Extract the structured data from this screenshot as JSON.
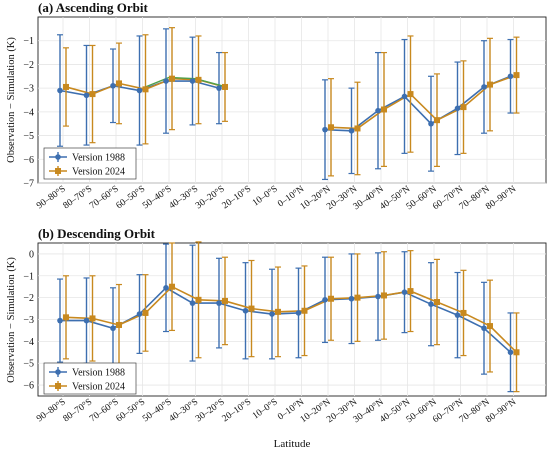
{
  "figure": {
    "xlabel": "Latitude",
    "ylabel": "Observation − Simulation (K)"
  },
  "colors": {
    "version_1988": "#3d6fb0",
    "version_2024": "#c8891f",
    "segment_green": "#4fa04a",
    "grid": "#e6e6e6",
    "frame": "#222222"
  },
  "chart_data": [
    {
      "panel": "a",
      "type": "line",
      "title": "(a) Ascending Orbit",
      "ylabel": "Observation − Simulation (K)",
      "xlabel": "",
      "ylim": [
        -7,
        0
      ],
      "yticks": [
        -7,
        -6,
        -5,
        -4,
        -3,
        -2,
        -1
      ],
      "grid": true,
      "legend_placement": "bottom-left",
      "categories": [
        "90–80°S",
        "80–70°S",
        "70–60°S",
        "60–50°S",
        "50–40°S",
        "40–30°S",
        "30–20°S",
        "20–10°S",
        "10–0°S",
        "0–10°N",
        "10–20°N",
        "20–30°N",
        "30–40°N",
        "40–50°N",
        "50–60°N",
        "60–70°N",
        "70–80°N",
        "80–90°N"
      ],
      "series": [
        {
          "name": "Version 1988",
          "values": [
            -3.1,
            -3.3,
            -2.9,
            -3.1,
            -2.7,
            -2.7,
            -3.0,
            null,
            null,
            null,
            -4.75,
            -4.8,
            -3.95,
            -3.35,
            -4.5,
            -3.85,
            -2.95,
            -2.5
          ],
          "error": [
            2.35,
            2.1,
            1.55,
            2.3,
            2.2,
            1.85,
            1.5,
            null,
            null,
            null,
            2.1,
            1.8,
            2.45,
            2.4,
            2.0,
            1.95,
            1.95,
            1.55
          ]
        },
        {
          "name": "Version 2024",
          "values": [
            -2.95,
            -3.25,
            -2.8,
            -3.05,
            -2.6,
            -2.65,
            -2.95,
            null,
            null,
            null,
            -4.65,
            -4.7,
            -3.9,
            -3.25,
            -4.35,
            -3.8,
            -2.85,
            -2.45
          ],
          "error": [
            1.65,
            2.05,
            1.7,
            2.3,
            2.15,
            1.85,
            1.45,
            null,
            null,
            null,
            2.05,
            1.95,
            2.4,
            2.45,
            1.95,
            1.95,
            1.95,
            1.6
          ]
        }
      ]
    },
    {
      "panel": "b",
      "type": "line",
      "title": "(b) Descending Orbit",
      "ylabel": "Observation − Simulation (K)",
      "xlabel": "Latitude",
      "ylim": [
        -6.5,
        0.5
      ],
      "yticks": [
        -6,
        -5,
        -4,
        -3,
        -2,
        -1,
        0
      ],
      "grid": true,
      "legend_placement": "bottom-left",
      "categories": [
        "90–80°S",
        "80–70°S",
        "70–60°S",
        "60–50°S",
        "50–40°S",
        "40–30°S",
        "30–20°S",
        "20–10°S",
        "10–0°S",
        "0–10°N",
        "10–20°N",
        "20–30°N",
        "30–40°N",
        "40–50°N",
        "50–60°N",
        "60–70°N",
        "70–80°N",
        "80–90°N"
      ],
      "series": [
        {
          "name": "Version 1988",
          "values": [
            -3.05,
            -3.05,
            -3.4,
            -2.75,
            -1.55,
            -2.25,
            -2.25,
            -2.6,
            -2.75,
            -2.7,
            -2.1,
            -2.05,
            -1.95,
            -1.75,
            -2.3,
            -2.8,
            -3.4,
            -4.5
          ],
          "error": [
            1.9,
            1.95,
            1.85,
            1.8,
            2.0,
            2.65,
            2.05,
            2.2,
            2.05,
            2.05,
            1.95,
            2.05,
            2.0,
            1.85,
            1.9,
            1.95,
            2.1,
            1.8
          ]
        },
        {
          "name": "Version 2024",
          "values": [
            -2.9,
            -2.95,
            -3.25,
            -2.7,
            -1.5,
            -2.1,
            -2.15,
            -2.5,
            -2.65,
            -2.6,
            -2.05,
            -2.0,
            -1.9,
            -1.7,
            -2.2,
            -2.7,
            -3.3,
            -4.5
          ],
          "error": [
            1.9,
            1.95,
            1.85,
            1.75,
            2.0,
            2.65,
            2.0,
            2.2,
            2.05,
            2.05,
            1.9,
            2.0,
            2.0,
            1.85,
            1.95,
            1.95,
            2.1,
            1.8
          ]
        }
      ]
    }
  ]
}
